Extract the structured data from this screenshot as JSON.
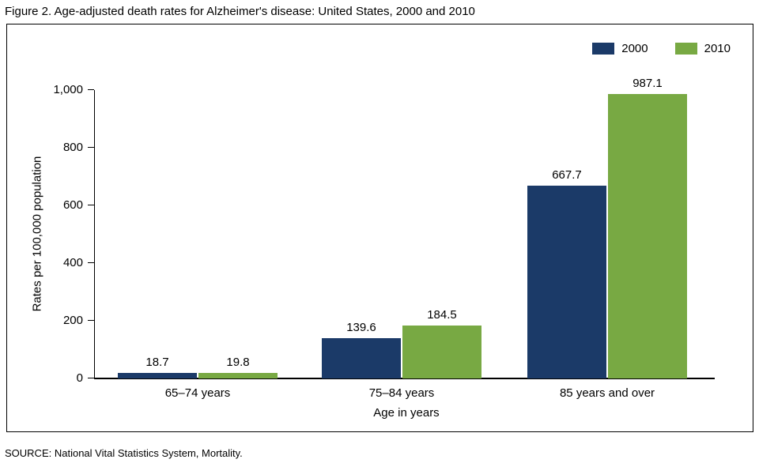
{
  "figure_title": "Figure 2. Age-adjusted death rates for Alzheimer's disease: United States, 2000 and 2010",
  "source_note": "SOURCE: National Vital Statistics System, Mortality.",
  "colors": {
    "series_2000": "#1b3a68",
    "series_2010": "#78a943",
    "axis": "#000000"
  },
  "chart_data": {
    "type": "bar",
    "title": "Figure 2. Age-adjusted death rates for Alzheimer's disease: United States, 2000 and 2010",
    "categories": [
      "65–74 years",
      "75–84 years",
      "85 years and over"
    ],
    "series": [
      {
        "name": "2000",
        "color": "#1b3a68",
        "values": [
          18.7,
          139.6,
          667.7
        ],
        "value_labels": [
          "18.7",
          "139.6",
          "667.7"
        ]
      },
      {
        "name": "2010",
        "color": "#78a943",
        "values": [
          19.8,
          184.5,
          987.1
        ],
        "value_labels": [
          "19.8",
          "184.5",
          "987.1"
        ]
      }
    ],
    "xlabel": "Age in years",
    "ylabel": "Rates per 100,000 population",
    "ylim": [
      0,
      1000
    ],
    "yticks": [
      0,
      200,
      400,
      600,
      800,
      1000
    ],
    "ytick_labels": [
      "0",
      "200",
      "400",
      "600",
      "800",
      "1,000"
    ],
    "legend_position": "top-right",
    "grid": false
  }
}
